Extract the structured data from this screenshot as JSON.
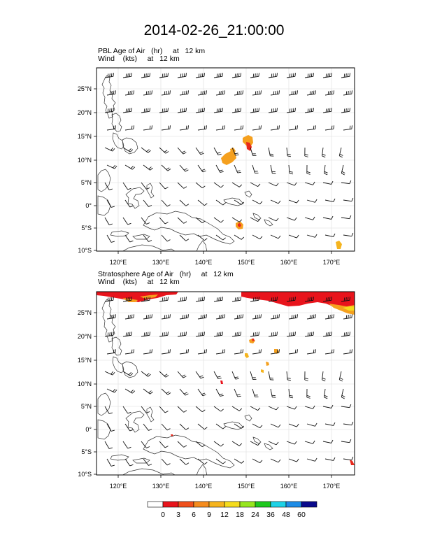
{
  "title": "2014-02-26_21:00:00",
  "panels": [
    {
      "field_label": "PBL Age of Air   (hr)     at   12 km",
      "wind_label": "Wind    (kts)     at   12 km",
      "lat_ticks": [
        "25°N",
        "20°N",
        "15°N",
        "10°N",
        "5°N",
        "0°",
        "5°S",
        "10°S"
      ],
      "lon_ticks": [
        "120°E",
        "130°E",
        "140°E",
        "150°E",
        "160°E",
        "170°E"
      ]
    },
    {
      "field_label": "Stratosphere Age of Air   (hr)     at   12 km",
      "wind_label": "Wind    (kts)     at   12 km",
      "lat_ticks": [
        "25°N",
        "20°N",
        "15°N",
        "10°N",
        "5°N",
        "0°",
        "5°S",
        "10°S"
      ],
      "lon_ticks": [
        "120°E",
        "130°E",
        "140°E",
        "150°E",
        "160°E",
        "170°E"
      ]
    }
  ],
  "colorbar": {
    "labels": [
      "0",
      "3",
      "6",
      "9",
      "12",
      "18",
      "24",
      "36",
      "48",
      "60"
    ],
    "colors": [
      "#ffffff",
      "#e8141c",
      "#f0501c",
      "#f58c1e",
      "#f5b41e",
      "#f5dc1e",
      "#96e61e",
      "#1ec81e",
      "#1ed2e6",
      "#1e8ce6",
      "#0a0a8c"
    ]
  }
}
